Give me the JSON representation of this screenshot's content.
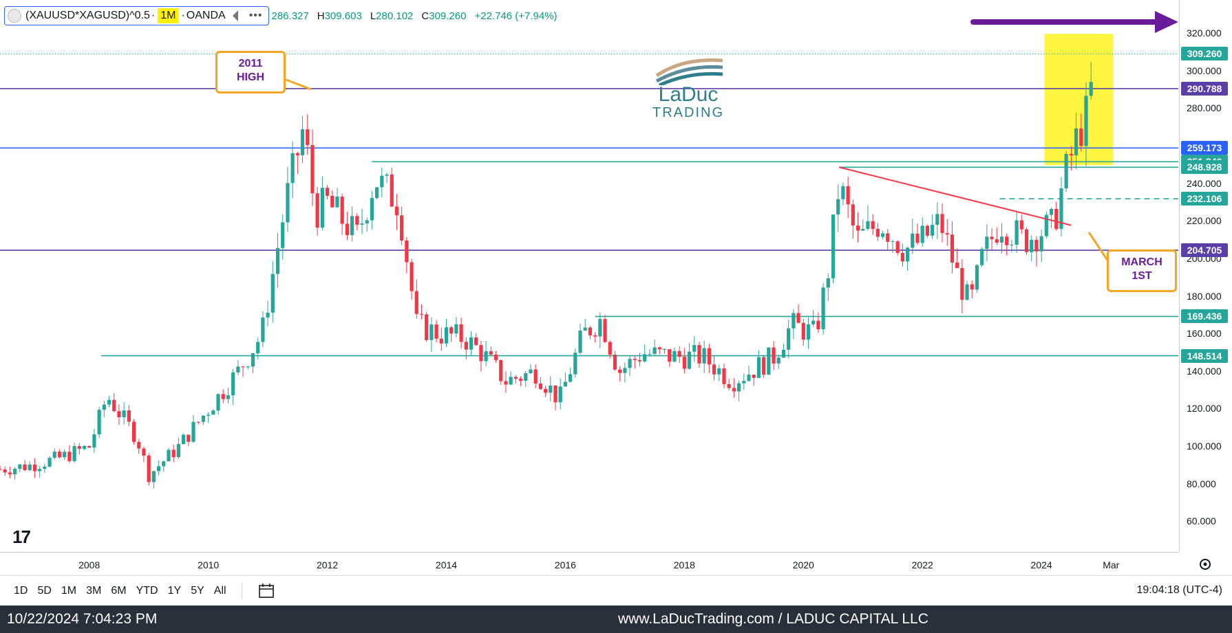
{
  "header": {
    "symbol": "(XAUUSD*XAGUSD)^0.5",
    "timeframe": "1M",
    "exchange": "OANDA",
    "more": "•••",
    "open_text": "286.327",
    "high_label": "H",
    "high_value": "309.603",
    "low_label": "L",
    "low_value": "280.102",
    "close_label": "C",
    "close_value": "309.260",
    "change": "+22.746 (+7.94%)"
  },
  "chart_data": {
    "type": "candlestick",
    "title": "(XAUUSD*XAGUSD)^0.5 · 1M · OANDA",
    "x_range": [
      2006.5,
      2026.3
    ],
    "ylim": [
      44,
      338
    ],
    "y_ticks": [
      60,
      80,
      100,
      120,
      140,
      160,
      180,
      200,
      220,
      240,
      260,
      280,
      300,
      320
    ],
    "y_tick_labels": [
      "60.000",
      "80.000",
      "100.000",
      "120.000",
      "140.000",
      "160.000",
      "180.000",
      "200.000",
      "220.000",
      "240.000",
      "260.000",
      "280.000",
      "300.000",
      "320.000"
    ],
    "x_ticks": [
      2008,
      2010,
      2012,
      2014,
      2016,
      2018,
      2020,
      2022,
      2024,
      2025.17
    ],
    "x_tick_labels": [
      "2008",
      "2010",
      "2012",
      "2014",
      "2016",
      "2018",
      "2020",
      "2022",
      "2024",
      "Mar"
    ],
    "price_path": [
      [
        2006.5,
        88
      ],
      [
        2007.0,
        90
      ],
      [
        2007.5,
        94
      ],
      [
        2008.0,
        100
      ],
      [
        2008.3,
        127
      ],
      [
        2008.8,
        105
      ],
      [
        2009.0,
        85
      ],
      [
        2009.5,
        100
      ],
      [
        2010.0,
        120
      ],
      [
        2010.5,
        140
      ],
      [
        2010.9,
        160
      ],
      [
        2011.3,
        230
      ],
      [
        2011.6,
        270
      ],
      [
        2011.8,
        225
      ],
      [
        2012.0,
        230
      ],
      [
        2012.5,
        212
      ],
      [
        2012.8,
        243
      ],
      [
        2013.2,
        230
      ],
      [
        2013.5,
        165
      ],
      [
        2013.9,
        160
      ],
      [
        2014.3,
        158
      ],
      [
        2014.6,
        150
      ],
      [
        2015.0,
        135
      ],
      [
        2015.5,
        140
      ],
      [
        2015.9,
        125
      ],
      [
        2016.3,
        160
      ],
      [
        2016.6,
        168
      ],
      [
        2016.9,
        140
      ],
      [
        2017.3,
        150
      ],
      [
        2017.8,
        148
      ],
      [
        2018.3,
        148
      ],
      [
        2018.8,
        135
      ],
      [
        2019.1,
        140
      ],
      [
        2019.5,
        148
      ],
      [
        2019.8,
        165
      ],
      [
        2020.2,
        160
      ],
      [
        2020.4,
        190
      ],
      [
        2020.6,
        240
      ],
      [
        2020.9,
        210
      ],
      [
        2021.3,
        220
      ],
      [
        2021.7,
        205
      ],
      [
        2022.0,
        210
      ],
      [
        2022.3,
        220
      ],
      [
        2022.6,
        190
      ],
      [
        2022.8,
        175
      ],
      [
        2023.0,
        200
      ],
      [
        2023.3,
        220
      ],
      [
        2023.7,
        210
      ],
      [
        2024.0,
        215
      ],
      [
        2024.2,
        218
      ],
      [
        2024.4,
        245
      ],
      [
        2024.6,
        265
      ],
      [
        2024.8,
        280
      ],
      [
        2024.9,
        309.26
      ]
    ],
    "horizontal_levels": [
      {
        "value": 290.788,
        "label": "290.788",
        "color": "#5b3fa8"
      },
      {
        "value": 259.173,
        "label": "259.173",
        "color": "#2962ff"
      },
      {
        "value": 251.846,
        "label": "251.846",
        "color": "#26a69a",
        "from": 2012.75
      },
      {
        "value": 248.928,
        "label": "248.928",
        "color": "#26a69a",
        "from": 2020.6
      },
      {
        "value": 232.106,
        "label": "232.106",
        "color": "#26a69a",
        "from": 2023.3,
        "dashed": true
      },
      {
        "value": 204.705,
        "label": "204.705",
        "color": "#5b3fa8"
      },
      {
        "value": 169.436,
        "label": "169.436",
        "color": "#26a69a",
        "from": 2016.5
      },
      {
        "value": 148.514,
        "label": "148.514",
        "color": "#26a69a",
        "from": 2008.2
      }
    ],
    "last_price": {
      "value": 309.26,
      "label": "309.260",
      "color": "#26a69a"
    },
    "trendline": {
      "from": [
        2020.6,
        248.928
      ],
      "to": [
        2024.5,
        218
      ],
      "color": "#f23645"
    },
    "highlight_box": {
      "x": [
        2024.05,
        2025.2
      ],
      "y": [
        250,
        320
      ],
      "color": "#fff200"
    },
    "annotations": [
      {
        "text": "2011\nHIGH"
      },
      {
        "text": "MARCH\n1ST"
      }
    ]
  },
  "callouts": {
    "high_2011": "2011 HIGH",
    "march_1st": "MARCH 1ST"
  },
  "logo": {
    "brand": "LaDuc",
    "sub": "TRADING"
  },
  "toolbar": {
    "ranges": [
      "1D",
      "5D",
      "1M",
      "3M",
      "6M",
      "YTD",
      "1Y",
      "5Y",
      "All"
    ],
    "clock": "19:04:18 (UTC-4)"
  },
  "footer": {
    "timestamp": "10/22/2024 7:04:23 PM",
    "site": "www.LaDucTrading.com / LADUC CAPITAL LLC"
  },
  "colors": {
    "up": "#26a69a",
    "down": "#f23645",
    "accent": "#2962ff"
  }
}
